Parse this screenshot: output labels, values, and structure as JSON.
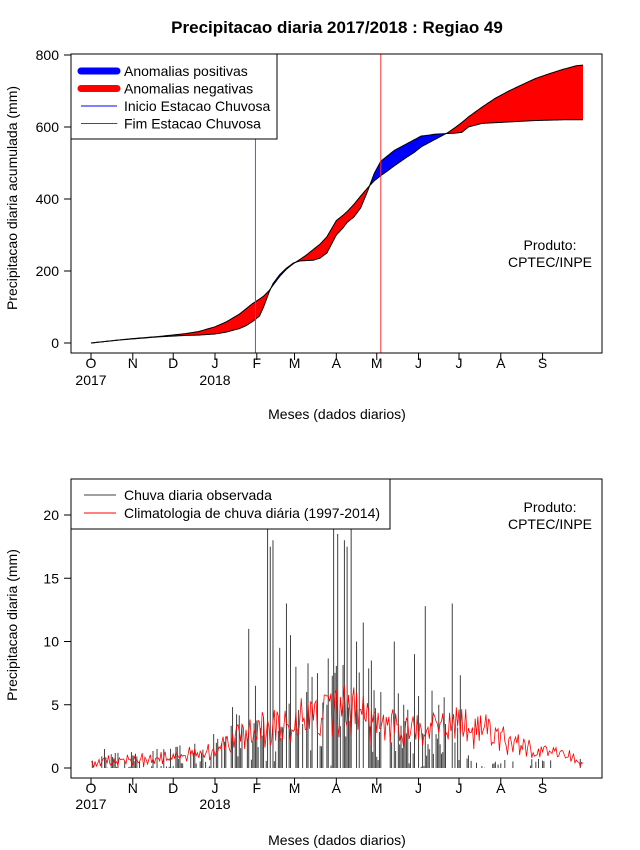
{
  "chart_data": [
    {
      "type": "area",
      "title": "Precipitacao diaria 2017/2018 : Regiao 49",
      "xlabel": "Meses (dados diarios)",
      "ylabel": "Precipitacao diaria acumulada (mm)",
      "ylim": [
        0,
        800
      ],
      "yticks": [
        0,
        200,
        400,
        600,
        800
      ],
      "xlim_days": [
        0,
        365
      ],
      "month_ticks": [
        {
          "label": "O",
          "day": 0,
          "year": "2017"
        },
        {
          "label": "N",
          "day": 31
        },
        {
          "label": "D",
          "day": 61
        },
        {
          "label": "J",
          "day": 92,
          "year": "2018"
        },
        {
          "label": "F",
          "day": 123
        },
        {
          "label": "M",
          "day": 151
        },
        {
          "label": "A",
          "day": 182
        },
        {
          "label": "M",
          "day": 212
        },
        {
          "label": "J",
          "day": 243
        },
        {
          "label": "J",
          "day": 273
        },
        {
          "label": "A",
          "day": 304
        },
        {
          "label": "S",
          "day": 335
        }
      ],
      "legend": {
        "position": "top-left",
        "entries": [
          {
            "label": "Anomalias positivas",
            "color": "#0000ff",
            "style": "thick-line"
          },
          {
            "label": "Anomalias negativas",
            "color": "#ff0000",
            "style": "thick-line"
          },
          {
            "label": "Inicio Estacao Chuvosa",
            "color": "#0000ff",
            "style": "line"
          },
          {
            "label": "Fim Estacao Chuvosa",
            "color": "#ff0000",
            "style": "line"
          }
        ]
      },
      "annotation": [
        "Produto:",
        "CPTEC/INPE"
      ],
      "rainy_season_start_day": 122,
      "rainy_season_end_day": 215,
      "series": [
        {
          "name": "Observado acumulado",
          "x": [
            0,
            10,
            20,
            30,
            40,
            50,
            60,
            70,
            80,
            92,
            100,
            110,
            115,
            120,
            125,
            128,
            132,
            135,
            140,
            145,
            150,
            155,
            160,
            165,
            170,
            175,
            182,
            187,
            190,
            195,
            200,
            205,
            210,
            215,
            220,
            225,
            230,
            235,
            240,
            245,
            250,
            255,
            260,
            265,
            270,
            275,
            280,
            290,
            300,
            310,
            320,
            330,
            340,
            350,
            360,
            365
          ],
          "y": [
            0,
            4,
            8,
            11,
            14,
            17,
            19,
            21,
            22,
            25,
            30,
            40,
            48,
            60,
            75,
            100,
            140,
            165,
            190,
            208,
            222,
            228,
            229,
            230,
            236,
            250,
            300,
            320,
            335,
            350,
            375,
            420,
            470,
            505,
            520,
            535,
            545,
            555,
            565,
            575,
            577,
            580,
            581,
            582,
            583,
            585,
            600,
            610,
            612,
            614,
            616,
            618,
            619,
            620,
            620,
            620
          ]
        },
        {
          "name": "Climatologia acumulada",
          "x": [
            0,
            10,
            20,
            30,
            40,
            50,
            60,
            70,
            80,
            92,
            100,
            110,
            115,
            120,
            125,
            128,
            132,
            135,
            140,
            145,
            150,
            155,
            160,
            165,
            170,
            175,
            182,
            187,
            190,
            195,
            200,
            205,
            210,
            215,
            220,
            225,
            230,
            235,
            240,
            245,
            250,
            255,
            260,
            265,
            270,
            275,
            280,
            290,
            300,
            310,
            320,
            330,
            340,
            350,
            360,
            365
          ],
          "y": [
            0,
            4,
            8,
            12,
            15,
            18,
            22,
            26,
            32,
            45,
            58,
            80,
            95,
            110,
            122,
            130,
            145,
            160,
            185,
            205,
            220,
            232,
            245,
            260,
            275,
            295,
            340,
            355,
            365,
            385,
            408,
            430,
            450,
            465,
            478,
            492,
            505,
            518,
            530,
            545,
            555,
            565,
            575,
            585,
            598,
            612,
            628,
            655,
            680,
            700,
            718,
            735,
            748,
            760,
            770,
            772
          ]
        }
      ]
    },
    {
      "type": "bar",
      "xlabel": "Meses (dados diarios)",
      "ylabel": "Precipitacao diaria (mm)",
      "ylim": [
        0,
        22
      ],
      "yticks": [
        0,
        5,
        10,
        15,
        20
      ],
      "xlim_days": [
        0,
        365
      ],
      "legend": {
        "position": "top-left",
        "entries": [
          {
            "label": "Chuva diaria observada",
            "color": "#404040",
            "style": "line"
          },
          {
            "label": "Climatologia de chuva diária (1997-2014)",
            "color": "#ff0000",
            "style": "line"
          }
        ]
      },
      "annotation": [
        "Produto:",
        "CPTEC/INPE"
      ],
      "notable_daily_values": [
        {
          "day": 10,
          "value": 1.5
        },
        {
          "day": 20,
          "value": 1.2
        },
        {
          "day": 100,
          "value": 2.5
        },
        {
          "day": 112,
          "value": 3.5
        },
        {
          "day": 117,
          "value": 11.0
        },
        {
          "day": 122,
          "value": 6.5
        },
        {
          "day": 128,
          "value": 4.0
        },
        {
          "day": 131,
          "value": 19.0
        },
        {
          "day": 133,
          "value": 17.5
        },
        {
          "day": 135,
          "value": 18.0
        },
        {
          "day": 140,
          "value": 9.5
        },
        {
          "day": 145,
          "value": 13.0
        },
        {
          "day": 148,
          "value": 10.5
        },
        {
          "day": 152,
          "value": 8.0
        },
        {
          "day": 160,
          "value": 6.0
        },
        {
          "day": 168,
          "value": 7.5
        },
        {
          "day": 175,
          "value": 5.0
        },
        {
          "day": 180,
          "value": 19.5
        },
        {
          "day": 183,
          "value": 18.5
        },
        {
          "day": 188,
          "value": 18.0
        },
        {
          "day": 190,
          "value": 17.5
        },
        {
          "day": 193,
          "value": 19.0
        },
        {
          "day": 197,
          "value": 10.0
        },
        {
          "day": 202,
          "value": 11.5
        },
        {
          "day": 208,
          "value": 8.5
        },
        {
          "day": 215,
          "value": 6.0
        },
        {
          "day": 225,
          "value": 10.0
        },
        {
          "day": 232,
          "value": 5.0
        },
        {
          "day": 240,
          "value": 9.0
        },
        {
          "day": 248,
          "value": 12.8
        },
        {
          "day": 258,
          "value": 5.0
        },
        {
          "day": 268,
          "value": 13.0
        },
        {
          "day": 280,
          "value": 1.0
        },
        {
          "day": 300,
          "value": 0.5
        },
        {
          "day": 330,
          "value": 0.5
        }
      ],
      "climatology_envelope": [
        {
          "day": 0,
          "value": 0.5
        },
        {
          "day": 30,
          "value": 0.6
        },
        {
          "day": 60,
          "value": 0.8
        },
        {
          "day": 92,
          "value": 1.5
        },
        {
          "day": 110,
          "value": 2.5
        },
        {
          "day": 120,
          "value": 3.0
        },
        {
          "day": 135,
          "value": 3.5
        },
        {
          "day": 150,
          "value": 3.5
        },
        {
          "day": 165,
          "value": 4.0
        },
        {
          "day": 182,
          "value": 4.5
        },
        {
          "day": 195,
          "value": 4.5
        },
        {
          "day": 210,
          "value": 3.5
        },
        {
          "day": 230,
          "value": 3.0
        },
        {
          "day": 250,
          "value": 3.0
        },
        {
          "day": 270,
          "value": 3.5
        },
        {
          "day": 290,
          "value": 3.0
        },
        {
          "day": 310,
          "value": 2.0
        },
        {
          "day": 330,
          "value": 1.5
        },
        {
          "day": 350,
          "value": 1.0
        },
        {
          "day": 365,
          "value": 0.5
        }
      ]
    }
  ]
}
